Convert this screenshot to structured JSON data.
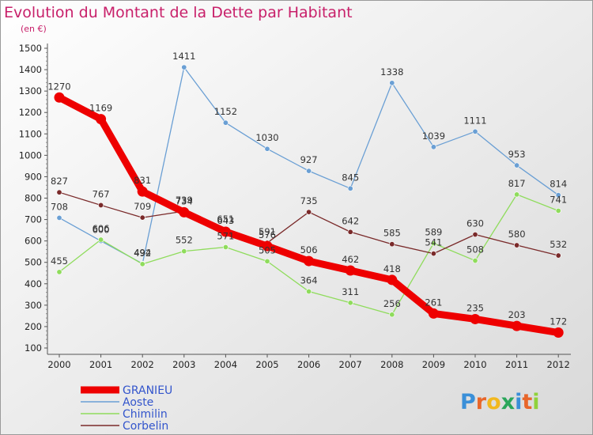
{
  "chart_data": {
    "type": "line",
    "title": "Evolution du Montant de la Dette par Habitant",
    "subtitle": "(en €)",
    "xlabel": "",
    "ylabel": "",
    "x": [
      "2000",
      "2001",
      "2002",
      "2003",
      "2004",
      "2005",
      "2006",
      "2007",
      "2008",
      "2009",
      "2010",
      "2011",
      "2012"
    ],
    "ylim": [
      100,
      1500
    ],
    "yticks": [
      100,
      200,
      300,
      400,
      500,
      600,
      700,
      800,
      900,
      1000,
      1100,
      1200,
      1300,
      1400,
      1500
    ],
    "grid": false,
    "legend_position": "bottom-left",
    "series": [
      {
        "name": "GRANIEU",
        "color": "#ee0000",
        "values": [
          1270,
          1169,
          831,
          734,
          643,
          576,
          506,
          462,
          418,
          261,
          235,
          203,
          172
        ],
        "labels": [
          "1270",
          "1169",
          "831",
          "734",
          "643",
          "576",
          "506",
          "462",
          "418",
          "261",
          "235",
          "203",
          "172"
        ]
      },
      {
        "name": "Aoste",
        "color": "#6a9fd4",
        "values": [
          708,
          600,
          494,
          1411,
          1152,
          1030,
          927,
          845,
          1338,
          1039,
          1111,
          953,
          814
        ],
        "labels": [
          "708",
          "600",
          "494",
          "1411",
          "1152",
          "1030",
          "927",
          "845",
          "1338",
          "1039",
          "1111",
          "953",
          "814"
        ]
      },
      {
        "name": "Chimilin",
        "color": "#8fdc5c",
        "values": [
          455,
          606,
          492,
          552,
          571,
          505,
          364,
          311,
          256,
          589,
          508,
          817,
          741
        ],
        "labels": [
          "455",
          "606",
          "492",
          "552",
          "571",
          "505",
          "364",
          "311",
          "256",
          "589",
          "508",
          "817",
          "741"
        ]
      },
      {
        "name": "Corbelin",
        "color": "#7a2a2a",
        "values": [
          827,
          767,
          709,
          739,
          651,
          591,
          735,
          642,
          585,
          541,
          630,
          580,
          532
        ],
        "labels": [
          "827",
          "767",
          "709",
          "739",
          "651",
          "591",
          "735",
          "642",
          "585",
          "541",
          "630",
          "580",
          "532"
        ]
      }
    ]
  },
  "brand": {
    "text": "Proxiti",
    "letters": [
      "P",
      "r",
      "o",
      "x",
      "i",
      "t",
      "i"
    ],
    "colors": [
      "#3a8fd8",
      "#e8662a",
      "#f2b81e",
      "#2aa65a",
      "#3a8fd8",
      "#e8662a",
      "#8fd13a"
    ]
  }
}
